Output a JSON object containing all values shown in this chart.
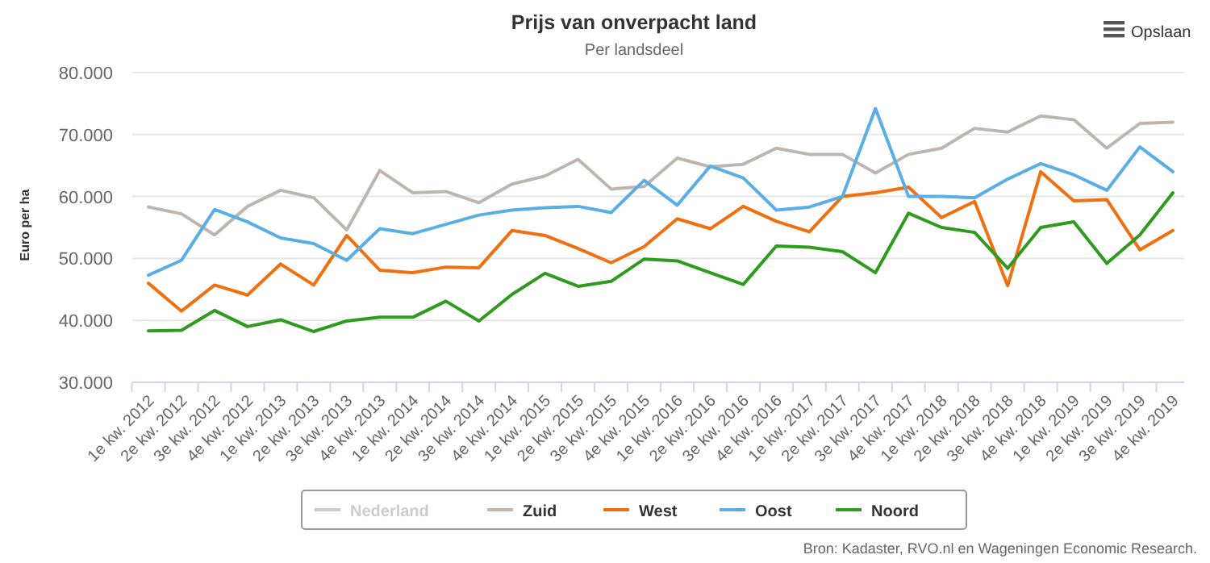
{
  "chart_data": {
    "type": "line",
    "title": "Prijs van onverpacht land",
    "subtitle": "Per landsdeel",
    "ylabel": "Euro per ha",
    "categories": [
      "1e kw. 2012",
      "2e kw. 2012",
      "3e kw. 2012",
      "4e kw. 2012",
      "1e kw. 2013",
      "2e kw. 2013",
      "3e kw. 2013",
      "4e kw. 2013",
      "1e kw. 2014",
      "2e kw. 2014",
      "3e kw. 2014",
      "4e kw. 2014",
      "1e kw. 2015",
      "2e kw. 2015",
      "3e kw. 2015",
      "4e kw. 2015",
      "1e kw. 2016",
      "2e kw. 2016",
      "3e kw. 2016",
      "4e kw. 2016",
      "1e kw. 2017",
      "2e kw. 2017",
      "3e kw. 2017",
      "4e kw. 2017",
      "1e kw. 2018",
      "2e kw. 2018",
      "3e kw. 2018",
      "4e kw. 2018",
      "1e kw. 2019",
      "2e kw. 2019",
      "3e kw. 2019",
      "4e kw. 2019"
    ],
    "series": [
      {
        "name": "Nederland",
        "color": "#cccccc",
        "values": [
          null,
          null,
          null,
          null,
          null,
          null,
          null,
          null,
          null,
          null,
          null,
          null,
          null,
          null,
          null,
          null,
          null,
          null,
          null,
          null,
          null,
          null,
          null,
          null,
          null,
          null,
          null,
          null,
          null,
          null,
          null,
          null
        ]
      },
      {
        "name": "Zuid",
        "color": "#bdb6ae",
        "values": [
          58300,
          57200,
          53800,
          58400,
          61000,
          59800,
          54600,
          64200,
          60600,
          60800,
          59000,
          62000,
          63300,
          66000,
          61200,
          61600,
          66200,
          64800,
          65200,
          67800,
          66800,
          66800,
          63800,
          66800,
          67800,
          71000,
          70400,
          73000,
          72400,
          67800,
          71800,
          72000
        ]
      },
      {
        "name": "West",
        "color": "#f07010",
        "values": [
          46000,
          41500,
          45700,
          44100,
          49100,
          45700,
          53700,
          48100,
          47700,
          48600,
          48500,
          54500,
          53700,
          51600,
          49300,
          51900,
          56400,
          54800,
          58400,
          56000,
          54300,
          60000,
          60600,
          61500,
          56600,
          59200,
          45600,
          64000,
          59300,
          59500,
          51400,
          54500
        ]
      },
      {
        "name": "Oost",
        "color": "#5aaee6",
        "values": [
          47300,
          49700,
          57900,
          55900,
          53300,
          52400,
          49700,
          54800,
          54000,
          55500,
          57000,
          57800,
          58200,
          58400,
          57400,
          62600,
          58600,
          64900,
          63000,
          57800,
          58300,
          60000,
          74200,
          60000,
          60000,
          59800,
          62800,
          65300,
          63500,
          61000,
          68000,
          64000
        ]
      },
      {
        "name": "Noord",
        "color": "#2e9a1e",
        "values": [
          38300,
          38400,
          41600,
          39000,
          40100,
          38200,
          39900,
          40500,
          40500,
          43100,
          39900,
          44200,
          47600,
          45500,
          46300,
          49900,
          49600,
          47700,
          45800,
          52000,
          51800,
          51100,
          47700,
          57300,
          55000,
          54200,
          48400,
          55000,
          55900,
          49200,
          53800,
          60600
        ]
      }
    ],
    "ylim": [
      30000,
      80000
    ],
    "yticks": [
      {
        "value": 30000,
        "label": "30.000"
      },
      {
        "value": 40000,
        "label": "40.000"
      },
      {
        "value": 50000,
        "label": "50.000"
      },
      {
        "value": 60000,
        "label": "60.000"
      },
      {
        "value": 70000,
        "label": "70.000"
      },
      {
        "value": 80000,
        "label": "80.000"
      }
    ],
    "grid": "y",
    "legend": "bottom",
    "marker": "none",
    "line_style": "solid",
    "annotations": [
      "Bron: Kadaster, RVO.nl en Wageningen Economic Research.",
      "Opslaan"
    ]
  }
}
